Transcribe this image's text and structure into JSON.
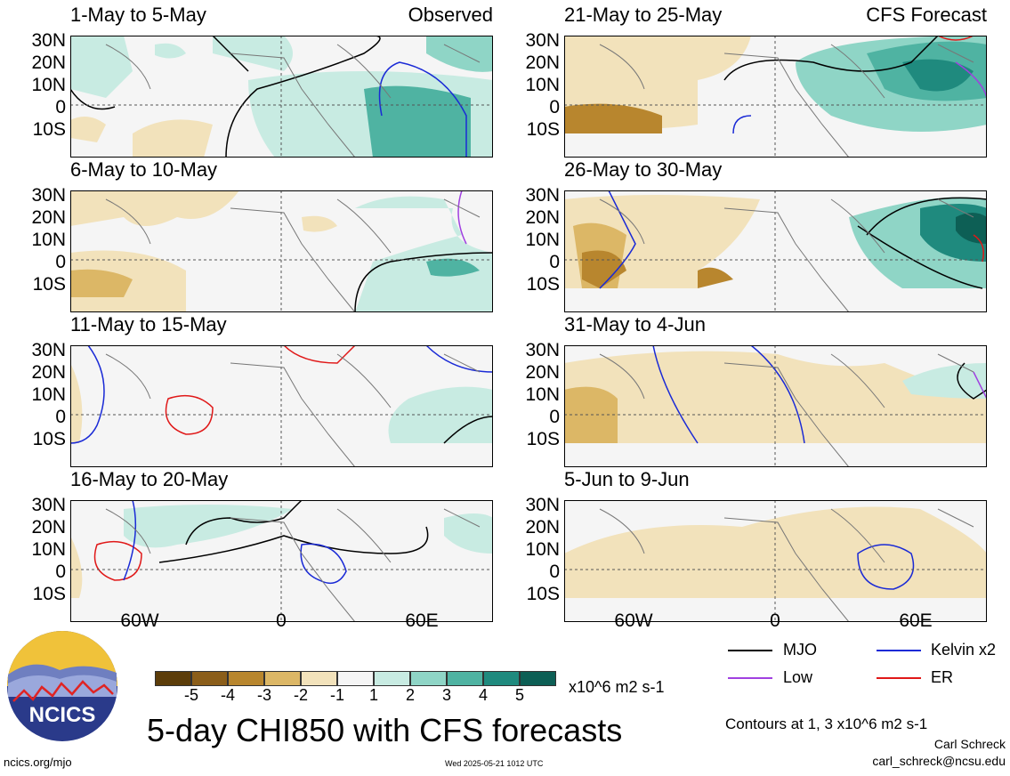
{
  "panels": [
    {
      "title": "1-May to 5-May",
      "label": "Observed"
    },
    {
      "title": "6-May to 10-May",
      "label": ""
    },
    {
      "title": "11-May to 15-May",
      "label": ""
    },
    {
      "title": "16-May to 20-May",
      "label": ""
    },
    {
      "title": "21-May to 25-May",
      "label": "CFS Forecast"
    },
    {
      "title": "26-May to 30-May",
      "label": ""
    },
    {
      "title": "31-May to 4-Jun",
      "label": ""
    },
    {
      "title": "5-Jun to 9-Jun",
      "label": ""
    }
  ],
  "lat_ticks": [
    "30N",
    "20N",
    "10N",
    "0",
    "10S"
  ],
  "lon_ticks": [
    "60W",
    "0",
    "60E"
  ],
  "colorbar": {
    "colors": [
      "#5c3d0a",
      "#8b5e1a",
      "#b8862e",
      "#dcb766",
      "#f2e2bb",
      "#f5f5f5",
      "#c8ebe2",
      "#8fd5c6",
      "#4fb3a2",
      "#1f8a7e",
      "#0d5f55"
    ],
    "labels": [
      "-5",
      "-4",
      "-3",
      "-2",
      "-1",
      "1",
      "2",
      "3",
      "4",
      "5"
    ],
    "units": "x10^6 m2 s-1"
  },
  "legend": [
    {
      "label": "MJO",
      "color": "#000000"
    },
    {
      "label": "Kelvin x2",
      "color": "#1a2ad6"
    },
    {
      "label": "Low",
      "color": "#a040e0"
    },
    {
      "label": "ER",
      "color": "#e01818"
    }
  ],
  "title": "5-day CHI850 with CFS forecasts",
  "contours_note": "Contours at 1, 3 x10^6 m2 s-1",
  "author": "Carl Schreck",
  "email": "carl_schreck@ncsu.edu",
  "site": "ncics.org/mjo",
  "timestamp": "Wed 2025-05-21 1012 UTC",
  "logo_text": "NCICS"
}
